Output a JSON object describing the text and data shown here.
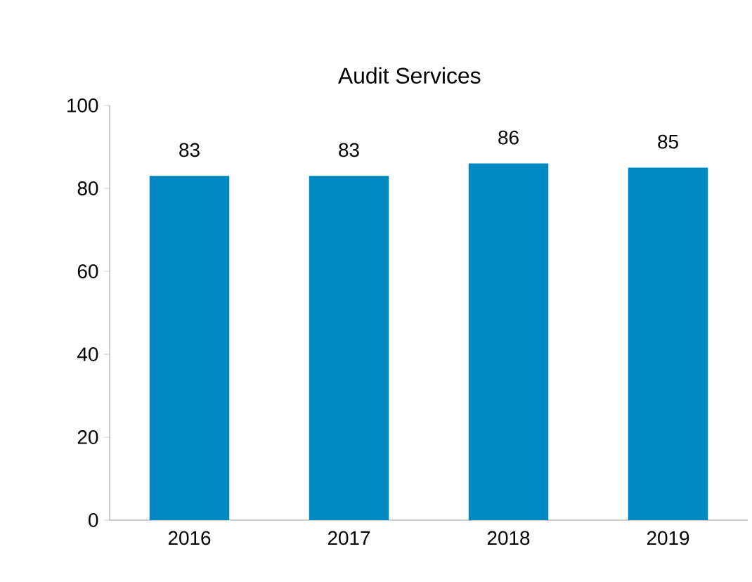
{
  "chart_data": {
    "type": "bar",
    "title": "Audit Services",
    "categories": [
      "2016",
      "2017",
      "2018",
      "2019"
    ],
    "values": [
      83,
      83,
      86,
      85
    ],
    "color": "#0088c0",
    "ylim": [
      0,
      100
    ],
    "yticks": [
      0,
      20,
      40,
      60,
      80,
      100
    ],
    "grid": false,
    "data_labels": true
  }
}
